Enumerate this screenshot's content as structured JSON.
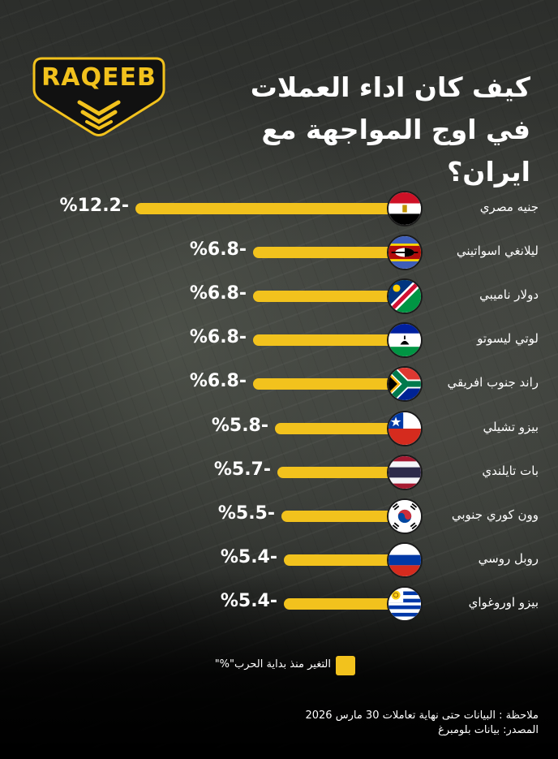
{
  "title_line1": "كيف كان اداء العملات",
  "title_line2": "في اوج المواجهة مع ايران؟",
  "logo": {
    "text": "RAQEEB",
    "color": "#f2c21d"
  },
  "legend_label": "التغير منذ بداية الحرب\"%\"",
  "note": "ملاحظة : البيانات حتى نهاية تعاملات 30 مارس 2026",
  "source": "المصدر: بيانات بلومبرغ",
  "colors": {
    "bar": "#f2c21d",
    "text": "#ffffff"
  },
  "chart_data": {
    "type": "bar",
    "orientation": "horizontal",
    "categories": [
      "جنيه مصري",
      "ليلانغي اسواتيني",
      "دولار ناميبي",
      "لوتي ليسوتو",
      "راند جنوب افريقي",
      "بيزو تشيلي",
      "بات تايلندي",
      "وون كوري جنوبي",
      "روبل روسي",
      "بيزو اوروغواي"
    ],
    "values": [
      -12.2,
      -6.8,
      -6.8,
      -6.8,
      -6.8,
      -5.8,
      -5.7,
      -5.5,
      -5.4,
      -5.4
    ],
    "value_labels": [
      "%12.2-",
      "%6.8-",
      "%6.8-",
      "%6.8-",
      "%6.8-",
      "%5.8-",
      "%5.7-",
      "%5.5-",
      "%5.4-",
      "%5.4-"
    ],
    "flags": [
      "egypt-flag-icon",
      "eswatini-flag-icon",
      "namibia-flag-icon",
      "lesotho-flag-icon",
      "south-africa-flag-icon",
      "chile-flag-icon",
      "thailand-flag-icon",
      "south-korea-flag-icon",
      "russia-flag-icon",
      "uruguay-flag-icon"
    ],
    "series": [
      {
        "name": "التغير منذ بداية الحرب\"%\"",
        "values": [
          -12.2,
          -6.8,
          -6.8,
          -6.8,
          -6.8,
          -5.8,
          -5.7,
          -5.5,
          -5.4,
          -5.4
        ]
      }
    ],
    "legend": "bottom-center",
    "grid": false
  }
}
